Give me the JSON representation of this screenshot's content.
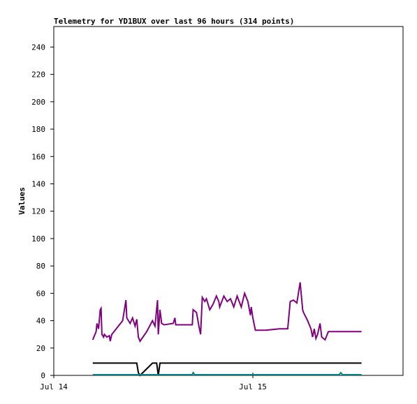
{
  "chart_data": {
    "type": "line",
    "title": "Telemetry for YD1BUX over last 96 hours (314 points)",
    "y_label": "Values",
    "xlim": [
      0,
      42.1
    ],
    "xticks": [
      {
        "value": 0,
        "label": "Jul 14"
      },
      {
        "value": 24,
        "label": "Jul 15"
      }
    ],
    "ylim": [
      0,
      255
    ],
    "yticks": [
      0,
      20,
      40,
      60,
      80,
      100,
      120,
      140,
      160,
      180,
      200,
      220,
      240
    ],
    "series": [
      {
        "color": "#800080",
        "x": [
          4.7,
          5.1,
          5.2,
          5.4,
          5.6,
          5.7,
          5.8,
          6.0,
          6.1,
          6.4,
          6.7,
          6.8,
          7.0,
          8.3,
          8.7,
          8.8,
          9.2,
          9.5,
          9.8,
          10.0,
          10.2,
          10.4,
          11.2,
          11.9,
          12.2,
          12.5,
          12.6,
          12.8,
          13.0,
          13.3,
          14.4,
          14.6,
          14.7,
          16.7,
          16.8,
          17.2,
          17.5,
          17.7,
          17.9,
          18.2,
          18.4,
          18.8,
          19.2,
          19.6,
          19.9,
          20.0,
          20.5,
          20.9,
          21.3,
          21.7,
          22.1,
          22.6,
          23.0,
          23.4,
          23.7,
          23.8,
          24.0,
          24.3,
          25.5,
          27.2,
          28.2,
          28.5,
          28.9,
          29.3,
          29.7,
          30.0,
          30.1,
          30.6,
          31.0,
          31.2,
          31.4,
          31.6,
          31.8,
          32.1,
          32.3,
          32.7,
          33.1,
          37.1
        ],
        "values": [
          26,
          32,
          38,
          34,
          48,
          49,
          30,
          28,
          30,
          28,
          29,
          25,
          30,
          40,
          55,
          42,
          38,
          42,
          36,
          41,
          28,
          25,
          32,
          40,
          36,
          55,
          30,
          48,
          38,
          37,
          38,
          42,
          37,
          37,
          48,
          46,
          36,
          30,
          57,
          54,
          56,
          48,
          52,
          58,
          54,
          50,
          58,
          54,
          56,
          50,
          58,
          50,
          60,
          54,
          44,
          50,
          42,
          33,
          33,
          34,
          34,
          54,
          55,
          53,
          68,
          48,
          46,
          40,
          34,
          28,
          34,
          27,
          30,
          38,
          28,
          26,
          32,
          32
        ]
      },
      {
        "color": "#000000",
        "x": [
          4.7,
          10.0,
          10.2,
          10.4,
          11.9,
          12.4,
          12.6,
          12.8,
          37.1
        ],
        "values": [
          9,
          9,
          2,
          0,
          9,
          9,
          0,
          9,
          9
        ]
      },
      {
        "color": "#008080",
        "x": [
          4.7,
          16.7,
          16.8,
          17.0,
          34.4,
          34.6,
          34.8,
          37.1
        ],
        "values": [
          0.5,
          0.5,
          2,
          0.5,
          0.5,
          2,
          0.5,
          0.5
        ]
      }
    ]
  }
}
